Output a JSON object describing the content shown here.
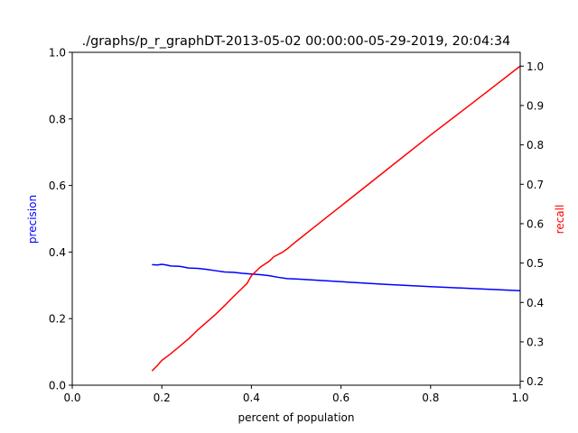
{
  "chart_data": {
    "type": "line",
    "title": "./graphs/p_r_graphDT-2013-05-02 00:00:00-05-29-2019, 20:04:34",
    "xlabel": "percent of population",
    "ylabel_left": "precision",
    "ylabel_right": "recall",
    "xlim": [
      0.0,
      1.0
    ],
    "ylim_left": [
      0.0,
      1.0
    ],
    "ylim_right": [
      0.19,
      1.035
    ],
    "x_ticks": [
      "0.0",
      "0.2",
      "0.4",
      "0.6",
      "0.8",
      "1.0"
    ],
    "y_left_ticks": [
      "0.0",
      "0.2",
      "0.4",
      "0.6",
      "0.8",
      "1.0"
    ],
    "y_right_ticks": [
      "0.2",
      "0.3",
      "0.4",
      "0.5",
      "0.6",
      "0.7",
      "0.8",
      "0.9",
      "1.0"
    ],
    "grid": false,
    "colors": {
      "precision": "#0000ff",
      "recall": "#ff0000",
      "left_label": "#0000ff",
      "right_label": "#ff0000"
    },
    "series": [
      {
        "axis": "left",
        "color": "#0000ff",
        "points": [
          [
            0.178,
            0.362
          ],
          [
            0.19,
            0.361
          ],
          [
            0.2,
            0.363
          ],
          [
            0.21,
            0.361
          ],
          [
            0.22,
            0.358
          ],
          [
            0.24,
            0.357
          ],
          [
            0.26,
            0.352
          ],
          [
            0.28,
            0.351
          ],
          [
            0.3,
            0.348
          ],
          [
            0.32,
            0.344
          ],
          [
            0.34,
            0.34
          ],
          [
            0.36,
            0.339
          ],
          [
            0.38,
            0.336
          ],
          [
            0.4,
            0.334
          ],
          [
            0.42,
            0.332
          ],
          [
            0.44,
            0.329
          ],
          [
            0.46,
            0.324
          ],
          [
            0.48,
            0.32
          ],
          [
            0.5,
            0.319
          ],
          [
            0.6,
            0.311
          ],
          [
            0.7,
            0.303
          ],
          [
            0.8,
            0.296
          ],
          [
            0.9,
            0.29
          ],
          [
            1.0,
            0.284
          ]
        ]
      },
      {
        "axis": "right",
        "color": "#ff0000",
        "points": [
          [
            0.178,
            0.226
          ],
          [
            0.19,
            0.24
          ],
          [
            0.2,
            0.253
          ],
          [
            0.22,
            0.27
          ],
          [
            0.24,
            0.289
          ],
          [
            0.26,
            0.308
          ],
          [
            0.28,
            0.33
          ],
          [
            0.3,
            0.35
          ],
          [
            0.32,
            0.37
          ],
          [
            0.34,
            0.392
          ],
          [
            0.36,
            0.415
          ],
          [
            0.38,
            0.437
          ],
          [
            0.39,
            0.448
          ],
          [
            0.4,
            0.468
          ],
          [
            0.42,
            0.49
          ],
          [
            0.44,
            0.505
          ],
          [
            0.45,
            0.516
          ],
          [
            0.47,
            0.528
          ],
          [
            0.48,
            0.536
          ],
          [
            0.5,
            0.555
          ],
          [
            0.55,
            0.6
          ],
          [
            0.6,
            0.645
          ],
          [
            0.7,
            0.735
          ],
          [
            0.8,
            0.825
          ],
          [
            0.9,
            0.912
          ],
          [
            1.0,
            1.0
          ]
        ]
      }
    ]
  }
}
